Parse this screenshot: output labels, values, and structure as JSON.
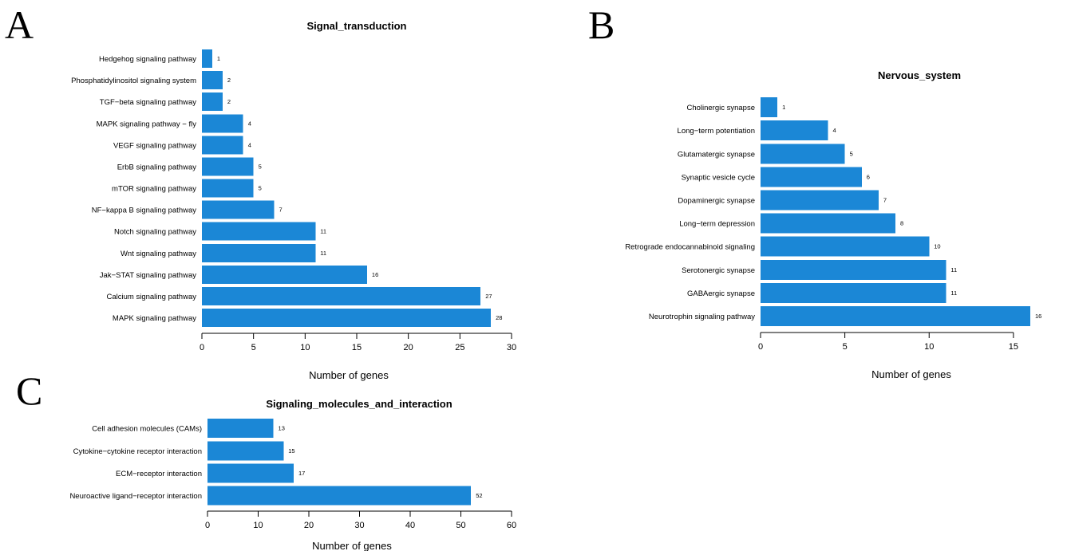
{
  "panels": [
    {
      "letter": "A",
      "chart_data": {
        "type": "bar",
        "orientation": "horizontal",
        "title": "Signal_transduction",
        "xlabel": "Number of genes",
        "ylabel": "",
        "xlim": [
          0,
          30
        ],
        "xticks": [
          0,
          5,
          10,
          15,
          20,
          25,
          30
        ],
        "grid": false,
        "color": "#1b87d6",
        "categories": [
          "Hedgehog signaling pathway",
          "Phosphatidylinositol signaling system",
          "TGF−beta signaling pathway",
          "MAPK signaling pathway − fly",
          "VEGF signaling pathway",
          "ErbB signaling pathway",
          "mTOR signaling pathway",
          "NF−kappa B signaling pathway",
          "Notch signaling pathway",
          "Wnt signaling pathway",
          "Jak−STAT signaling pathway",
          "Calcium signaling pathway",
          "MAPK signaling pathway"
        ],
        "values": [
          1,
          2,
          2,
          4,
          4,
          5,
          5,
          7,
          11,
          11,
          16,
          27,
          28
        ]
      }
    },
    {
      "letter": "B",
      "chart_data": {
        "type": "bar",
        "orientation": "horizontal",
        "title": "Nervous_system",
        "xlabel": "Number of genes",
        "ylabel": "",
        "xlim": [
          0,
          16
        ],
        "xticks": [
          0,
          5,
          10,
          15
        ],
        "grid": false,
        "color": "#1b87d6",
        "categories": [
          "Cholinergic synapse",
          "Long−term potentiation",
          "Glutamatergic synapse",
          "Synaptic vesicle cycle",
          "Dopaminergic synapse",
          "Long−term depression",
          "Retrograde endocannabinoid signaling",
          "Serotonergic synapse",
          "GABAergic synapse",
          "Neurotrophin signaling pathway"
        ],
        "values": [
          1,
          4,
          5,
          6,
          7,
          8,
          10,
          11,
          11,
          16
        ]
      }
    },
    {
      "letter": "C",
      "chart_data": {
        "type": "bar",
        "orientation": "horizontal",
        "title": "Signaling_molecules_and_interaction",
        "xlabel": "Number of genes",
        "ylabel": "",
        "xlim": [
          0,
          60
        ],
        "xticks": [
          0,
          10,
          20,
          30,
          40,
          50,
          60
        ],
        "grid": false,
        "color": "#1b87d6",
        "categories": [
          "Cell adhesion molecules (CAMs)",
          "Cytokine−cytokine receptor interaction",
          "ECM−receptor interaction",
          "Neuroactive ligand−receptor interaction"
        ],
        "values": [
          13,
          15,
          17,
          52
        ]
      }
    }
  ]
}
